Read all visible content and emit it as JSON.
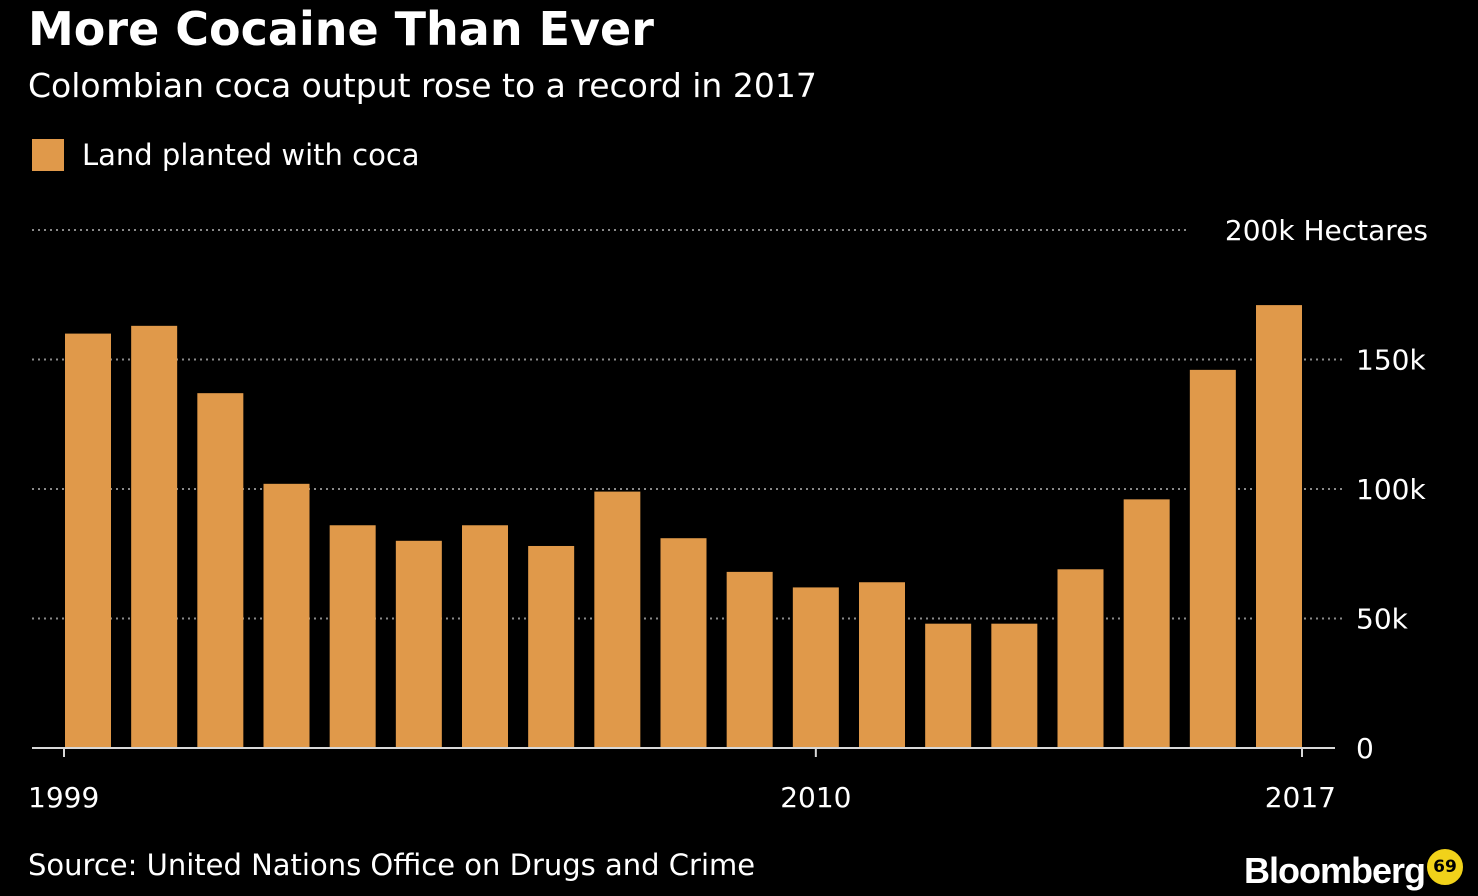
{
  "title": "More Cocaine Than Ever",
  "subtitle": "Colombian coca output rose to a record in 2017",
  "source": "Source: United Nations Office on Drugs and Crime",
  "brand": "Bloomberg",
  "badge_icon": "circle-badge-icon",
  "colors": {
    "background": "#000000",
    "bar": "#e0994a",
    "grid": "#8a8a8a",
    "axis": "#d8d8d8",
    "text": "#ffffff"
  },
  "chart_data": {
    "type": "bar",
    "legend": [
      "Land planted with coca"
    ],
    "legend_position": "top-left",
    "categories": [
      "1999",
      "2000",
      "2001",
      "2002",
      "2003",
      "2004",
      "2005",
      "2006",
      "2007",
      "2008",
      "2009",
      "2010",
      "2011",
      "2012",
      "2013",
      "2014",
      "2015",
      "2016",
      "2017"
    ],
    "series": [
      {
        "name": "Land planted with coca",
        "values": [
          160,
          163,
          137,
          102,
          86,
          80,
          86,
          78,
          99,
          81,
          68,
          62,
          64,
          48,
          48,
          69,
          96,
          146,
          171
        ]
      }
    ],
    "ylim": [
      0,
      200
    ],
    "yticks": [
      0,
      50,
      100,
      150,
      200
    ],
    "ytick_labels": [
      "0",
      "50k",
      "100k",
      "150k",
      "200k Hectares"
    ],
    "xtick_labels": [
      "1999",
      "2010",
      "2017"
    ],
    "grid": true,
    "y_axis_side": "right"
  }
}
